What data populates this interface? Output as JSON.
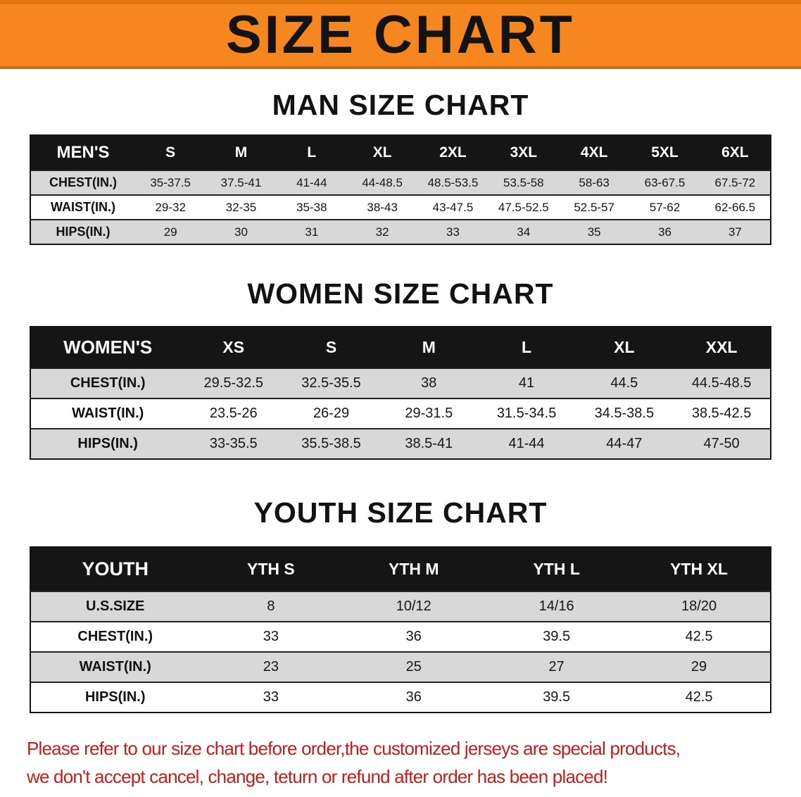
{
  "banner": {
    "title": "SIZE CHART"
  },
  "man": {
    "heading": "MAN SIZE CHART",
    "table": {
      "header": [
        "MEN'S",
        "S",
        "M",
        "L",
        "XL",
        "2XL",
        "3XL",
        "4XL",
        "5XL",
        "6XL"
      ],
      "rows": [
        [
          "CHEST(IN.)",
          "35-37.5",
          "37.5-41",
          "41-44",
          "44-48.5",
          "48.5-53.5",
          "53.5-58",
          "58-63",
          "63-67.5",
          "67.5-72"
        ],
        [
          "WAIST(IN.)",
          "29-32",
          "32-35",
          "35-38",
          "38-43",
          "43-47.5",
          "47.5-52.5",
          "52.5-57",
          "57-62",
          "62-66.5"
        ],
        [
          "HIPS(IN.)",
          "29",
          "30",
          "31",
          "32",
          "33",
          "34",
          "35",
          "36",
          "37"
        ]
      ]
    }
  },
  "women": {
    "heading": "WOMEN SIZE CHART",
    "table": {
      "header": [
        "WOMEN'S",
        "XS",
        "S",
        "M",
        "L",
        "XL",
        "XXL"
      ],
      "rows": [
        [
          "CHEST(IN.)",
          "29.5-32.5",
          "32.5-35.5",
          "38",
          "41",
          "44.5",
          "44.5-48.5"
        ],
        [
          "WAIST(IN.)",
          "23.5-26",
          "26-29",
          "29-31.5",
          "31.5-34.5",
          "34.5-38.5",
          "38.5-42.5"
        ],
        [
          "HIPS(IN.)",
          "33-35.5",
          "35.5-38.5",
          "38.5-41",
          "41-44",
          "44-47",
          "47-50"
        ]
      ]
    }
  },
  "youth": {
    "heading": "YOUTH SIZE CHART",
    "table": {
      "header": [
        "YOUTH",
        "YTH S",
        "YTH M",
        "YTH L",
        "YTH XL"
      ],
      "rows": [
        [
          "U.S.SIZE",
          "8",
          "10/12",
          "14/16",
          "18/20"
        ],
        [
          "CHEST(IN.)",
          "33",
          "36",
          "39.5",
          "42.5"
        ],
        [
          "WAIST(IN.)",
          "23",
          "25",
          "27",
          "29"
        ],
        [
          "HIPS(IN.)",
          "33",
          "36",
          "39.5",
          "42.5"
        ]
      ]
    }
  },
  "footer": {
    "line1": "Please refer to our size chart before order,the customized jerseys are special products,",
    "line2": "we don't accept cancel, change, teturn or refund after order has been placed!"
  },
  "colors": {
    "banner_orange": "#F6861F",
    "header_black": "#151515",
    "row_gray": "#D8D8D8",
    "footer_red": "#C01E1E"
  }
}
